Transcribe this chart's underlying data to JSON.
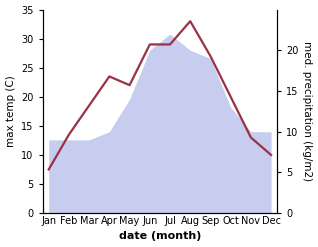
{
  "months": [
    "Jan",
    "Feb",
    "Mar",
    "Apr",
    "May",
    "Jun",
    "Jul",
    "Aug",
    "Sep",
    "Oct",
    "Nov",
    "Dec"
  ],
  "temperature": [
    7.5,
    13.5,
    18.5,
    23.5,
    22.0,
    29.0,
    29.0,
    33.0,
    27.0,
    20.0,
    13.0,
    10.0
  ],
  "precipitation": [
    9,
    9,
    9,
    10,
    14,
    20,
    22,
    20,
    19,
    13,
    10,
    10
  ],
  "temp_ylim": [
    0,
    35
  ],
  "precip_ylim": [
    0,
    25
  ],
  "temp_yticks": [
    0,
    5,
    10,
    15,
    20,
    25,
    30,
    35
  ],
  "precip_yticks": [
    0,
    5,
    10,
    15,
    20
  ],
  "fill_color": "#b0b8e8",
  "fill_alpha": 0.7,
  "line_color": "#993344",
  "line_width": 1.6,
  "xlabel": "date (month)",
  "ylabel_left": "max temp (C)",
  "ylabel_right": "med. precipitation (kg/m2)",
  "bg_color": "#ffffff",
  "xlabel_fontsize": 8,
  "ylabel_fontsize": 7.5,
  "tick_fontsize": 7
}
